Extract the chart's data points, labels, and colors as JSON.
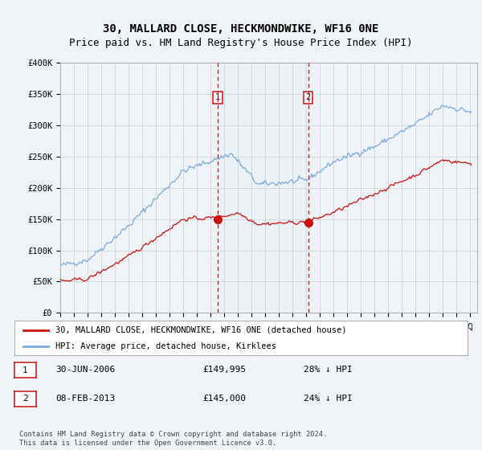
{
  "title": "30, MALLARD CLOSE, HECKMONDWIKE, WF16 0NE",
  "subtitle": "Price paid vs. HM Land Registry's House Price Index (HPI)",
  "title_fontsize": 10,
  "subtitle_fontsize": 9,
  "ylim": [
    0,
    400000
  ],
  "yticks": [
    0,
    50000,
    100000,
    150000,
    200000,
    250000,
    300000,
    350000,
    400000
  ],
  "ytick_labels": [
    "£0",
    "£50K",
    "£100K",
    "£150K",
    "£200K",
    "£250K",
    "£300K",
    "£350K",
    "£400K"
  ],
  "background_color": "#f0f4f8",
  "plot_bg_color": "#f0f4f8",
  "grid_color": "#cccccc",
  "hpi_color": "#7aaadd",
  "price_color": "#cc1111",
  "sale1_date_idx": 138,
  "sale1_price": 149995,
  "sale2_date_idx": 217,
  "sale2_price": 145000,
  "shade_color": "#dce9f5",
  "marker_color": "#cc1111",
  "legend_entries": [
    "30, MALLARD CLOSE, HECKMONDWIKE, WF16 0NE (detached house)",
    "HPI: Average price, detached house, Kirklees"
  ],
  "table_entries": [
    {
      "label": "1",
      "date": "30-JUN-2006",
      "price": "£149,995",
      "note": "28% ↓ HPI"
    },
    {
      "label": "2",
      "date": "08-FEB-2013",
      "price": "£145,000",
      "note": "24% ↓ HPI"
    }
  ],
  "footer_text": "Contains HM Land Registry data © Crown copyright and database right 2024.\nThis data is licensed under the Open Government Licence v3.0."
}
